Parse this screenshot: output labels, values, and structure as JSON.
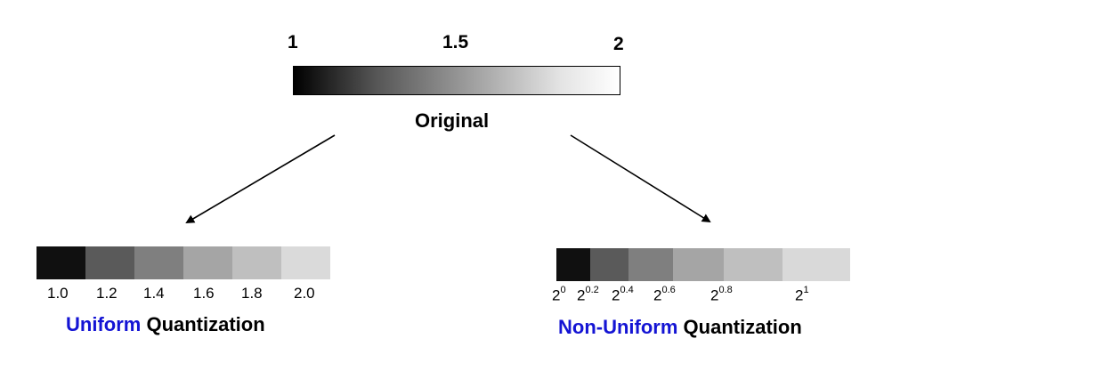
{
  "original": {
    "labels": [
      "1",
      "1.5",
      "2"
    ],
    "caption": "Original"
  },
  "uniform": {
    "labels": [
      "1.0",
      "1.2",
      "1.4",
      "1.6",
      "1.8",
      "2.0"
    ],
    "caption_highlight": "Uniform",
    "caption_rest": "Quantization",
    "levels": [
      {
        "color": "#101010",
        "share": 1
      },
      {
        "color": "#5a5a5a",
        "share": 1
      },
      {
        "color": "#7f7f7f",
        "share": 1
      },
      {
        "color": "#a5a5a5",
        "share": 1
      },
      {
        "color": "#bfbfbf",
        "share": 1
      },
      {
        "color": "#dadada",
        "share": 1
      }
    ]
  },
  "nonuniform": {
    "base": "2",
    "exponents": [
      "0",
      "0.2",
      "0.4",
      "0.6",
      "0.8",
      "1"
    ],
    "caption_highlight": "Non-Uniform",
    "caption_rest": "Quantization",
    "levels": [
      {
        "color": "#101010",
        "share": 0.149
      },
      {
        "color": "#5a5a5a",
        "share": 0.171
      },
      {
        "color": "#7f7f7f",
        "share": 0.197
      },
      {
        "color": "#a5a5a5",
        "share": 0.226
      },
      {
        "color": "#bfbfbf",
        "share": 0.26
      },
      {
        "color": "#d9d9d9",
        "share": 0.299
      }
    ]
  },
  "colors": {
    "highlight": "#1414d4",
    "arrow": "#000000"
  }
}
